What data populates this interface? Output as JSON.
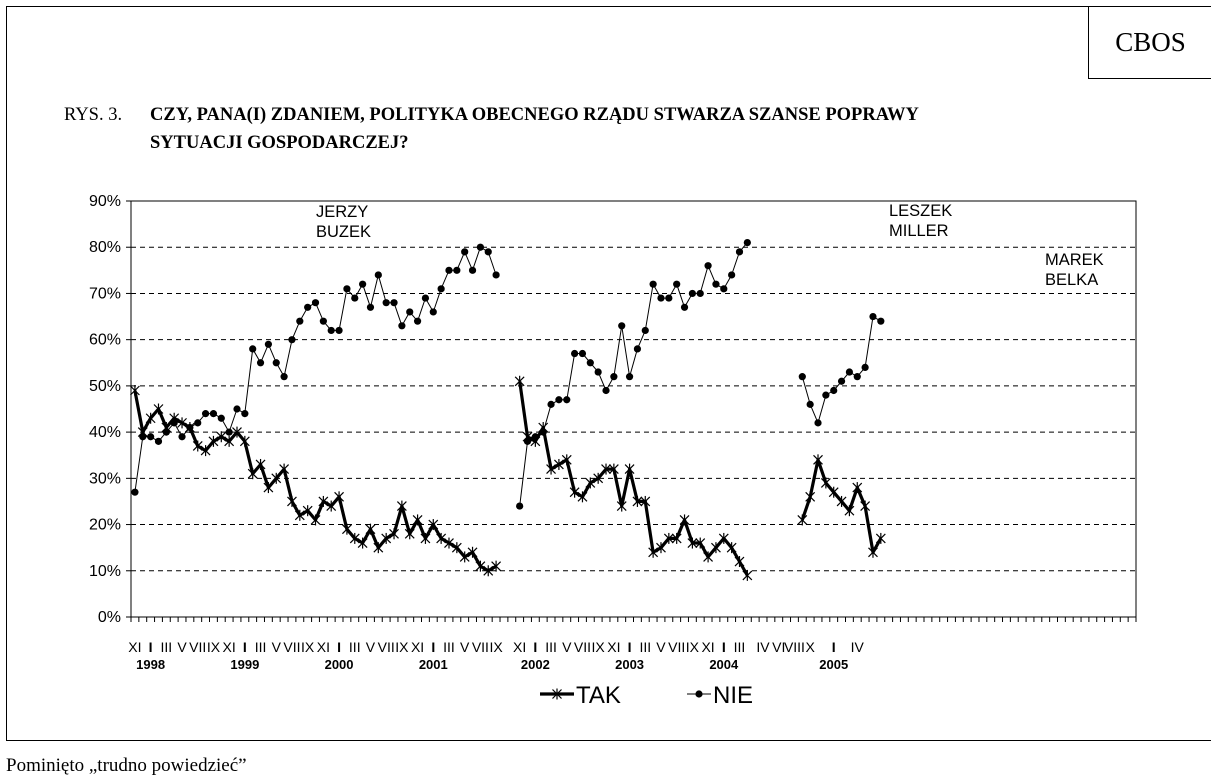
{
  "badge": "CBOS",
  "figure_label": "RYS. 3.",
  "title_line1": "CZY, PANA(I) ZDANIEM, POLITYKA OBECNEGO RZĄDU STWARZA SZANSE POPRAWY",
  "title_line2": "SYTUACJI GOSPODARCZEJ?",
  "footnote": "Pominięto „trudno powiedzieć”",
  "chart_data": {
    "type": "line",
    "y_ticks": [
      "0%",
      "10%",
      "20%",
      "30%",
      "40%",
      "50%",
      "60%",
      "70%",
      "80%",
      "90%"
    ],
    "ylim": [
      0,
      90
    ],
    "grid": "horizontal-dashed",
    "legend": "bottom",
    "month_labels": [
      "XI",
      "I",
      "III",
      "V",
      "VII",
      "IX",
      "XI",
      "I",
      "III",
      "V",
      "VII",
      "IX",
      "XI",
      "I",
      "III",
      "V",
      "VII",
      "IX",
      "XI",
      "I",
      "III",
      "V",
      "VII",
      "IX",
      "XI",
      "I",
      "III",
      "V",
      "VII",
      "IX",
      "XI",
      "I",
      "III",
      "V",
      "VII",
      "IX",
      "XI",
      "I",
      "III",
      "IV",
      "VI",
      "VIII",
      "X",
      "I",
      "IV"
    ],
    "year_labels": [
      "1998",
      "1999",
      "2000",
      "2001",
      "2002",
      "2003",
      "2004",
      "2005"
    ],
    "annotations": [
      {
        "lines": [
          "JERZY",
          "BUZEK"
        ]
      },
      {
        "lines": [
          "LESZEK",
          "MILLER"
        ]
      },
      {
        "lines": [
          "MAREK",
          "BELKA"
        ]
      }
    ],
    "series": [
      {
        "name": "TAK",
        "marker": "star",
        "segments": [
          [
            49,
            40,
            43,
            45,
            41,
            43,
            42,
            41,
            37,
            36,
            38,
            39,
            38,
            40,
            38,
            31,
            33,
            28,
            30,
            32,
            25,
            22,
            23,
            21,
            25,
            24,
            26,
            19,
            17,
            16,
            19,
            15,
            17,
            18,
            24,
            18,
            21,
            17,
            20,
            17,
            16,
            15,
            13,
            14,
            11,
            10,
            11
          ],
          [
            51,
            39,
            38,
            41,
            32,
            33,
            34,
            27,
            26,
            29,
            30,
            32,
            32,
            24,
            32,
            25,
            25,
            14,
            15,
            17,
            17,
            21,
            16,
            16,
            13,
            15,
            17,
            15,
            12,
            9
          ],
          [
            21,
            26,
            34,
            29,
            27,
            25,
            23,
            28,
            24,
            14,
            17
          ]
        ]
      },
      {
        "name": "NIE",
        "marker": "dot",
        "segments": [
          [
            27,
            39,
            39,
            38,
            40,
            42,
            39,
            41,
            42,
            44,
            44,
            43,
            40,
            45,
            44,
            58,
            55,
            59,
            55,
            52,
            60,
            64,
            67,
            68,
            64,
            62,
            62,
            71,
            69,
            72,
            67,
            74,
            68,
            68,
            63,
            66,
            64,
            69,
            66,
            71,
            75,
            75,
            79,
            75,
            80,
            79,
            74
          ],
          [
            24,
            38,
            39,
            40,
            46,
            47,
            47,
            57,
            57,
            55,
            53,
            49,
            52,
            63,
            52,
            58,
            62,
            72,
            69,
            69,
            72,
            67,
            70,
            70,
            76,
            72,
            71,
            74,
            79,
            81
          ],
          [
            52,
            46,
            42,
            48,
            49,
            51,
            53,
            52,
            54,
            65,
            64
          ]
        ]
      }
    ]
  }
}
